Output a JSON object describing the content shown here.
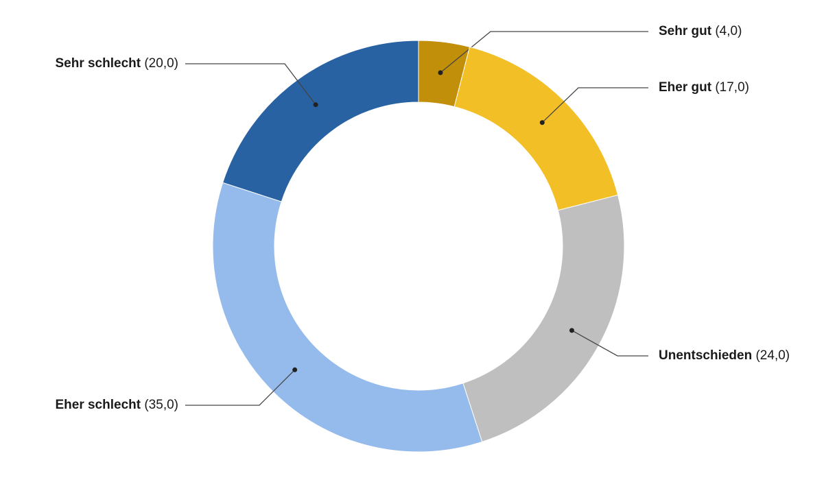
{
  "chart_data": {
    "type": "donut",
    "categories": [
      "Sehr gut",
      "Eher gut",
      "Unentschieden",
      "Eher schlecht",
      "Sehr schlecht"
    ],
    "values": [
      4,
      17,
      24,
      35,
      20
    ],
    "value_labels": [
      "(4,0)",
      "(17,0)",
      "(24,0)",
      "(35,0)",
      "(20,0)"
    ],
    "colors": [
      "#c28f0a",
      "#f2bf27",
      "#bfbfbf",
      "#94bbeb",
      "#2862a3"
    ]
  }
}
